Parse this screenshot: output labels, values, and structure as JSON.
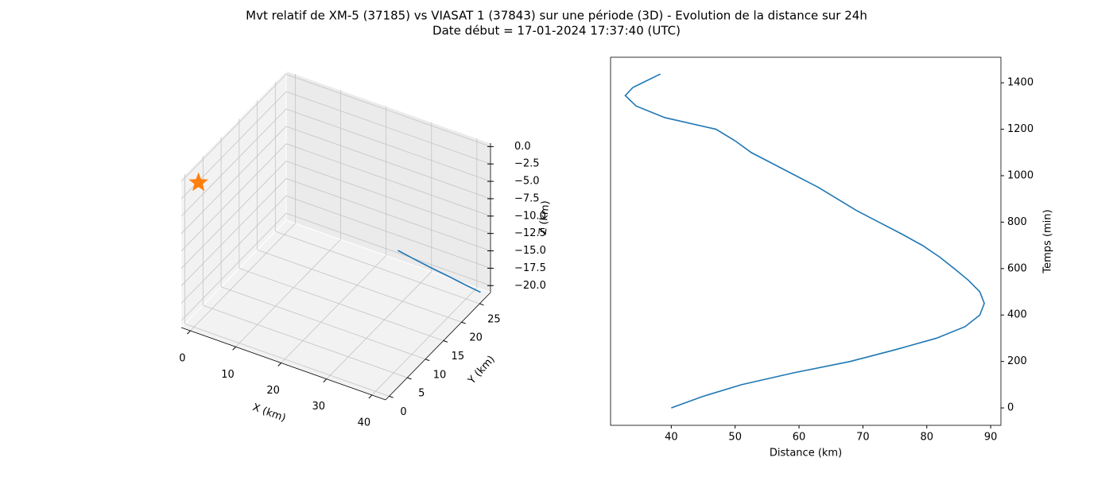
{
  "title": "Mvt relatif de XM-5 (37185) vs VIASAT 1 (37843) sur une période (3D) - Evolution de la distance sur 24h",
  "subtitle": "Date début = 17-01-2024 17:37:40 (UTC)",
  "chart_data": [
    {
      "type": "line3d",
      "x_label": "X (km)",
      "y_label": "Y (km)",
      "z_label": "Z (km)",
      "xlim": [
        -2,
        43
      ],
      "ylim": [
        -1,
        28
      ],
      "zlim": [
        -21,
        0.5
      ],
      "xticks": [
        0,
        10,
        20,
        30,
        40
      ],
      "yticks": [
        0,
        5,
        10,
        15,
        20,
        25
      ],
      "zticks": [
        {
          "value": 0,
          "label": "0.0"
        },
        {
          "value": -2.5,
          "label": "−2.5"
        },
        {
          "value": -5,
          "label": "−5.0"
        },
        {
          "value": -7.5,
          "label": "−7.5"
        },
        {
          "value": -10,
          "label": "−10.0"
        },
        {
          "value": -12.5,
          "label": "−12.5"
        },
        {
          "value": -15,
          "label": "−15.0"
        },
        {
          "value": -17.5,
          "label": "−17.5"
        },
        {
          "value": -20,
          "label": "−20.0"
        }
      ],
      "grid": true,
      "line": {
        "color": "#1f77b4",
        "x": [
          23,
          27,
          31,
          35,
          38.5,
          42
        ],
        "y": [
          27.5,
          27.3,
          27.1,
          26.9,
          26.7,
          26.5
        ],
        "z": [
          -19.3,
          -19.6,
          -19.85,
          -20.05,
          -20.25,
          -20.4
        ]
      },
      "marker": {
        "color": "#ff7f0e",
        "shape": "star",
        "x": 1,
        "y": 0,
        "z": 0
      }
    },
    {
      "type": "line",
      "x_label": "Distance (km)",
      "y_label": "Temps (min)",
      "y_axis_side": "right",
      "xlim": [
        30.5,
        91.6
      ],
      "ylim": [
        -75,
        1510
      ],
      "xticks": [
        40,
        50,
        60,
        70,
        80,
        90
      ],
      "yticks": [
        0,
        200,
        400,
        600,
        800,
        1000,
        1200,
        1400
      ],
      "grid": false,
      "series": [
        {
          "color": "#1f77b4",
          "x": [
            40,
            45,
            51,
            59,
            68,
            75,
            81.5,
            86,
            88.3,
            89,
            88.3,
            86.5,
            84.3,
            82,
            79.3,
            76,
            72.5,
            69,
            66,
            63,
            59.5,
            56,
            52.5,
            50,
            47,
            39,
            34.5,
            32.8,
            34,
            35.5,
            38.3
          ],
          "values": [
            0,
            50,
            100,
            150,
            200,
            250,
            300,
            350,
            400,
            450,
            500,
            550,
            600,
            650,
            700,
            750,
            800,
            850,
            900,
            950,
            1000,
            1050,
            1100,
            1150,
            1200,
            1250,
            1300,
            1345,
            1380,
            1400,
            1438
          ]
        }
      ]
    }
  ]
}
